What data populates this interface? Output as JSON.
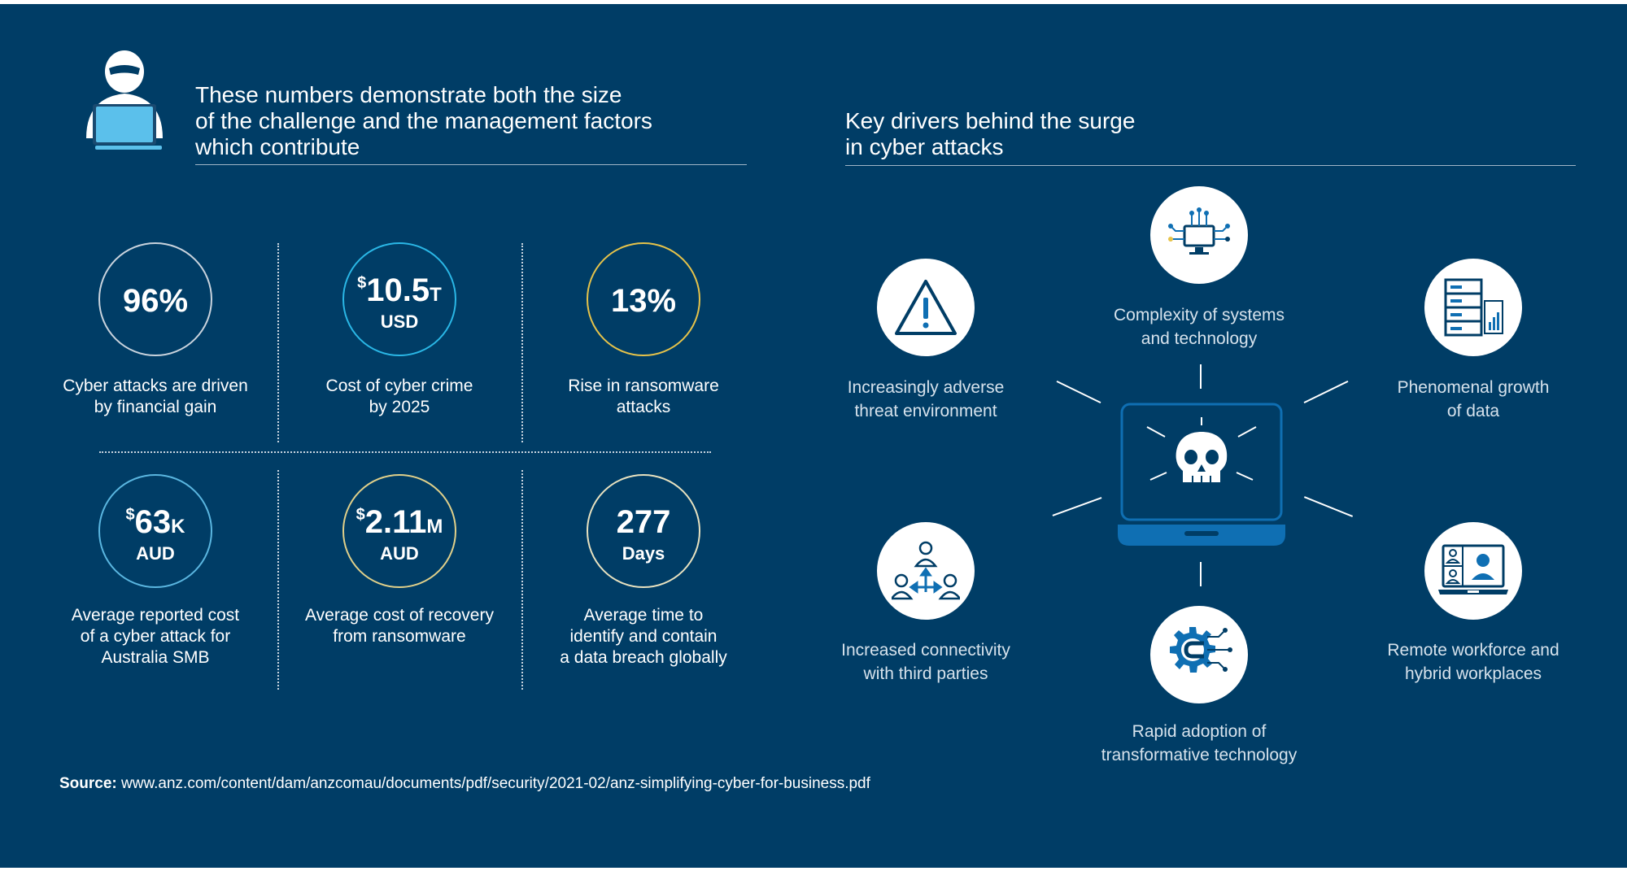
{
  "left": {
    "heading": [
      "These numbers demonstrate both the size",
      "of the challenge and the management factors",
      "which contribute"
    ],
    "stats": [
      {
        "value": "96%",
        "prefix": "",
        "suffix": "",
        "unit": "",
        "caption": [
          "Cyber attacks are driven",
          "by financial gain"
        ],
        "ring_color": "#c9d3dd"
      },
      {
        "value": "10.5",
        "prefix": "$",
        "suffix": "T",
        "unit": "USD",
        "caption": [
          "Cost of cyber crime",
          "by 2025"
        ],
        "ring_color": "#2ab7e6"
      },
      {
        "value": "13%",
        "prefix": "",
        "suffix": "",
        "unit": "",
        "caption": [
          "Rise in ransomware",
          "attacks"
        ],
        "ring_color": "#e6c34a"
      },
      {
        "value": "63",
        "prefix": "$",
        "suffix": "K",
        "unit": "AUD",
        "caption": [
          "Average reported cost",
          "of a cyber attack for",
          "Australia SMB"
        ],
        "ring_color": "#5ab6e0"
      },
      {
        "value": "2.11",
        "prefix": "$",
        "suffix": "M",
        "unit": "AUD",
        "caption": [
          "Average cost of recovery",
          "from ransomware"
        ],
        "ring_color": "#e0d08a"
      },
      {
        "value": "277",
        "prefix": "",
        "suffix": "",
        "unit": "Days",
        "caption": [
          "Average time to",
          "identify and contain",
          "a data breach globally"
        ],
        "ring_color": "#e8e2c0"
      }
    ]
  },
  "right": {
    "heading": [
      "Key drivers behind the surge",
      "in cyber attacks"
    ],
    "drivers": [
      {
        "icon": "warning-icon",
        "caption": [
          "Increasingly adverse",
          "threat environment"
        ]
      },
      {
        "icon": "circuit-computer-icon",
        "caption": [
          "Complexity of systems",
          "and technology"
        ]
      },
      {
        "icon": "data-server-icon",
        "caption": [
          "Phenomenal growth",
          "of data"
        ]
      },
      {
        "icon": "network-people-icon",
        "caption": [
          "Increased connectivity",
          "with third parties"
        ]
      },
      {
        "icon": "gear-tech-icon",
        "caption": [
          "Rapid adoption of",
          "transformative technology"
        ]
      },
      {
        "icon": "video-call-icon",
        "caption": [
          "Remote workforce and",
          "hybrid workplaces"
        ]
      }
    ],
    "center_icon": "skull-laptop-icon"
  },
  "hacker_icon": "hacker-laptop-icon",
  "source": {
    "label": "Source:",
    "url": "www.anz.com/content/dam/anzcomau/documents/pdf/security/2021-02/anz-simplifying-cyber-for-business.pdf"
  },
  "colors": {
    "background": "#003d66",
    "accent_blue": "#0f6fb3",
    "light_blue": "#5bc0eb"
  }
}
